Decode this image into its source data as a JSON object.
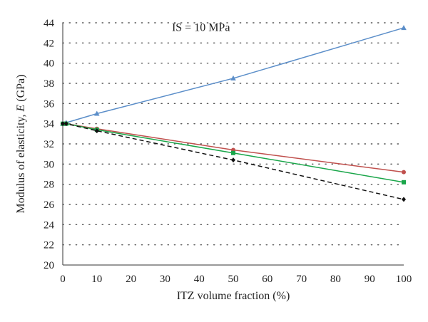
{
  "chart_data": {
    "type": "line",
    "title": "",
    "annotation": "IS = 10 MPa",
    "xlabel": "ITZ volume fraction (%)",
    "ylabel_prefix": "Modulus of elasticity, ",
    "ylabel_symbol": "E",
    "ylabel_suffix": " (GPa)",
    "xlim": [
      0,
      100
    ],
    "ylim": [
      20,
      44
    ],
    "xticks": [
      0,
      10,
      20,
      30,
      40,
      50,
      60,
      70,
      80,
      90,
      100
    ],
    "yticks": [
      20,
      22,
      24,
      26,
      28,
      30,
      32,
      34,
      36,
      38,
      40,
      42,
      44
    ],
    "grid": "dotted-horizontal",
    "series": [
      {
        "color": "#5b8ec9",
        "marker": "triangle",
        "dash": "solid",
        "x": [
          0,
          1,
          10,
          50,
          100
        ],
        "y": [
          34.0,
          34.1,
          35.0,
          38.5,
          43.5
        ]
      },
      {
        "color": "#c0504d",
        "marker": "circle",
        "dash": "solid",
        "x": [
          0,
          1,
          10,
          50,
          100
        ],
        "y": [
          34.0,
          34.0,
          33.5,
          31.4,
          29.2
        ]
      },
      {
        "color": "#1aa64a",
        "marker": "square",
        "dash": "solid",
        "x": [
          0,
          1,
          10,
          50,
          100
        ],
        "y": [
          34.0,
          34.0,
          33.4,
          31.1,
          28.2
        ]
      },
      {
        "color": "#111111",
        "marker": "diamond",
        "dash": "dashed",
        "x": [
          0,
          1,
          10,
          50,
          100
        ],
        "y": [
          34.0,
          34.0,
          33.3,
          30.4,
          26.5
        ]
      }
    ]
  }
}
